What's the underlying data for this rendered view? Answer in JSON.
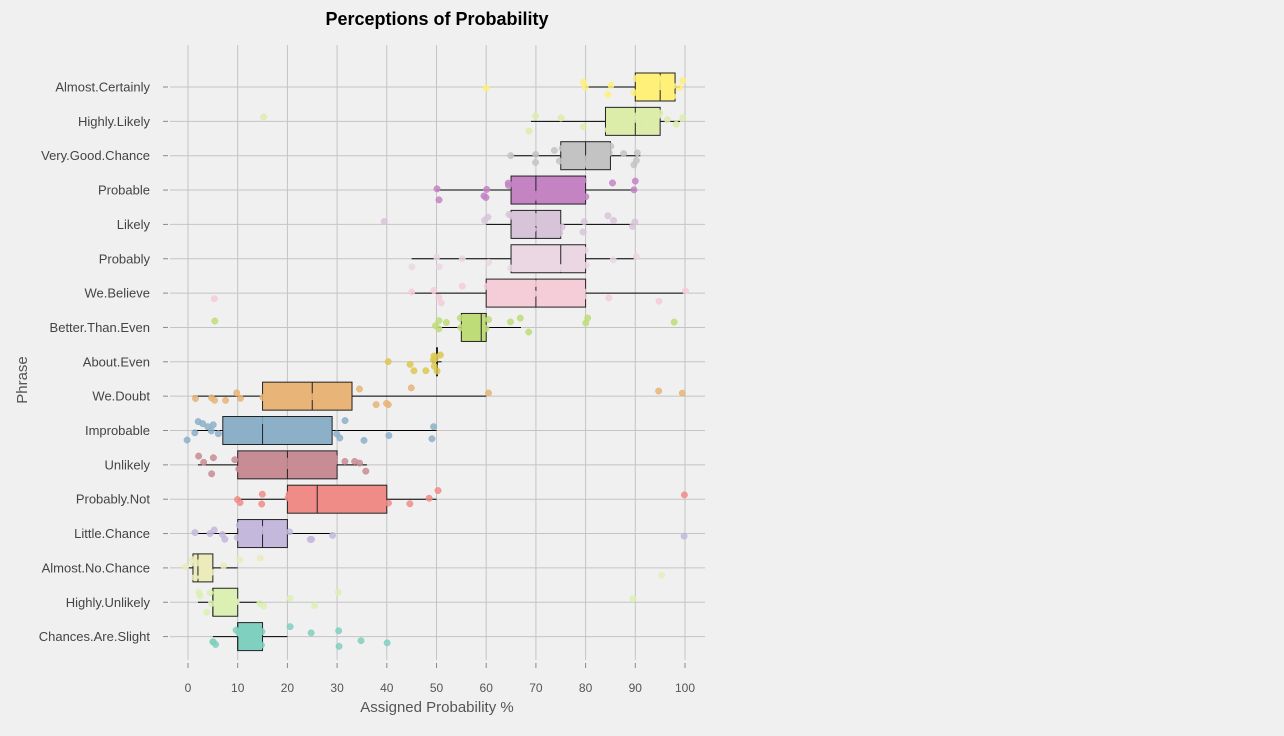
{
  "chart_data": {
    "type": "boxplot",
    "orientation": "horizontal",
    "title": "Perceptions of Probability",
    "xlabel": "Assigned Probability %",
    "ylabel": "Phrase",
    "xlim": [
      0,
      100
    ],
    "xticks": [
      0,
      10,
      20,
      30,
      40,
      50,
      60,
      70,
      80,
      90,
      100
    ],
    "grid": true,
    "legend": "none",
    "categories": [
      "Almost.Certainly",
      "Highly.Likely",
      "Very.Good.Chance",
      "Probable",
      "Likely",
      "Probably",
      "We.Believe",
      "Better.Than.Even",
      "About.Even",
      "We.Doubt",
      "Improbable",
      "Unlikely",
      "Probably.Not",
      "Little.Chance",
      "Almost.No.Chance",
      "Highly.Unlikely",
      "Chances.Are.Slight"
    ],
    "series": [
      {
        "category": "Almost.Certainly",
        "color": "#fff07a",
        "whisker_low": 80,
        "q1": 90,
        "median": 95,
        "q3": 98,
        "whisker_high": 99,
        "points": [
          60,
          80,
          80,
          85,
          85,
          90,
          90,
          93,
          95,
          95,
          95,
          97,
          98,
          99,
          99
        ]
      },
      {
        "category": "Highly.Likely",
        "color": "#dcedaa",
        "whisker_low": 69,
        "q1": 84,
        "median": 90,
        "q3": 95,
        "whisker_high": 99,
        "points": [
          15,
          69,
          70,
          75,
          80,
          85,
          85,
          88,
          90,
          90,
          92,
          95,
          95,
          97,
          98,
          99
        ]
      },
      {
        "category": "Very.Good.Chance",
        "color": "#c3c3c3",
        "whisker_low": 65,
        "q1": 75,
        "median": 80,
        "q3": 85,
        "whisker_high": 91,
        "points": [
          65,
          70,
          70,
          74,
          75,
          75,
          80,
          80,
          80,
          85,
          85,
          88,
          90,
          90,
          91
        ]
      },
      {
        "category": "Probable",
        "color": "#c484c4",
        "whisker_low": 50,
        "q1": 65,
        "median": 70,
        "q3": 80,
        "whisker_high": 90,
        "points": [
          50,
          51,
          60,
          60,
          60,
          64,
          65,
          70,
          70,
          70,
          75,
          80,
          80,
          85,
          90,
          90
        ]
      },
      {
        "category": "Likely",
        "color": "#d8c4d8",
        "whisker_low": 60,
        "q1": 65,
        "median": 70,
        "q3": 75,
        "whisker_high": 90,
        "points": [
          40,
          60,
          60,
          65,
          65,
          70,
          70,
          70,
          72,
          75,
          75,
          80,
          80,
          85,
          86,
          90,
          90
        ]
      },
      {
        "category": "Probably",
        "color": "#ebd7e4",
        "whisker_low": 45,
        "q1": 65,
        "median": 75,
        "q3": 80,
        "whisker_high": 90,
        "points": [
          45,
          50,
          51,
          55,
          60,
          65,
          70,
          70,
          75,
          75,
          80,
          80,
          85,
          90
        ]
      },
      {
        "category": "We.Believe",
        "color": "#f5cdd8",
        "whisker_low": 45,
        "q1": 60,
        "median": 70,
        "q3": 80,
        "whisker_high": 100,
        "points": [
          5,
          45,
          50,
          50,
          51,
          55,
          60,
          70,
          70,
          75,
          80,
          80,
          85,
          95,
          100
        ]
      },
      {
        "category": "Better.Than.Even",
        "color": "#bedc78",
        "whisker_low": 50,
        "q1": 55,
        "median": 59,
        "q3": 60,
        "whisker_high": 67,
        "points": [
          5,
          50,
          50,
          51,
          52,
          55,
          55,
          58,
          60,
          60,
          65,
          67,
          69,
          80,
          80,
          98
        ]
      },
      {
        "category": "About.Even",
        "color": "#dcc850",
        "whisker_low": 49,
        "q1": 50,
        "median": 50,
        "q3": 50,
        "whisker_high": 51,
        "points": [
          40,
          45,
          45,
          48,
          49,
          50,
          50,
          50,
          50,
          51
        ]
      },
      {
        "category": "We.Doubt",
        "color": "#e8b478",
        "whisker_low": 1,
        "q1": 15,
        "median": 25,
        "q3": 33,
        "whisker_high": 60,
        "points": [
          1,
          5,
          5,
          8,
          10,
          10,
          15,
          20,
          20,
          25,
          30,
          35,
          38,
          40,
          40,
          45,
          60,
          95,
          100
        ]
      },
      {
        "category": "Improbable",
        "color": "#8cb0c8",
        "whisker_low": 1,
        "q1": 7,
        "median": 15,
        "q3": 29,
        "whisker_high": 50,
        "points": [
          0,
          1,
          2,
          3,
          4,
          5,
          5,
          6,
          8,
          10,
          15,
          20,
          25,
          30,
          30,
          32,
          35,
          40,
          49,
          50
        ]
      },
      {
        "category": "Unlikely",
        "color": "#c88c94",
        "whisker_low": 2,
        "q1": 10,
        "median": 20,
        "q3": 30,
        "whisker_high": 36,
        "points": [
          2,
          3,
          5,
          5,
          10,
          10,
          15,
          20,
          20,
          25,
          30,
          30,
          32,
          34,
          35,
          36
        ]
      },
      {
        "category": "Probably.Not",
        "color": "#f08c88",
        "whisker_low": 10,
        "q1": 20,
        "median": 26,
        "q3": 40,
        "whisker_high": 50,
        "points": [
          10,
          10,
          15,
          15,
          20,
          20,
          25,
          30,
          35,
          40,
          45,
          49,
          50,
          100
        ]
      },
      {
        "category": "Little.Chance",
        "color": "#c4b8dc",
        "whisker_low": 2,
        "q1": 10,
        "median": 15,
        "q3": 20,
        "whisker_high": 29,
        "points": [
          2,
          5,
          5,
          7,
          8,
          10,
          10,
          12,
          15,
          15,
          18,
          20,
          25,
          25,
          29,
          100
        ]
      },
      {
        "category": "Almost.No.Chance",
        "color": "#ebebbc",
        "whisker_low": 0,
        "q1": 1,
        "median": 2,
        "q3": 5,
        "whisker_high": 10,
        "points": [
          0,
          1,
          1,
          2,
          2,
          3,
          5,
          7,
          10,
          15,
          95
        ]
      },
      {
        "category": "Highly.Unlikely",
        "color": "#dcf0b4",
        "whisker_low": 2,
        "q1": 5,
        "median": 5,
        "q3": 10,
        "whisker_high": 15,
        "points": [
          2,
          3,
          4,
          5,
          5,
          7,
          10,
          10,
          15,
          15,
          20,
          25,
          30,
          90
        ]
      },
      {
        "category": "Chances.Are.Slight",
        "color": "#80d0c0",
        "whisker_low": 5,
        "q1": 10,
        "median": 10,
        "q3": 15,
        "whisker_high": 20,
        "points": [
          5,
          5,
          5,
          10,
          10,
          10,
          15,
          15,
          20,
          25,
          30,
          30,
          35,
          40
        ]
      }
    ]
  }
}
